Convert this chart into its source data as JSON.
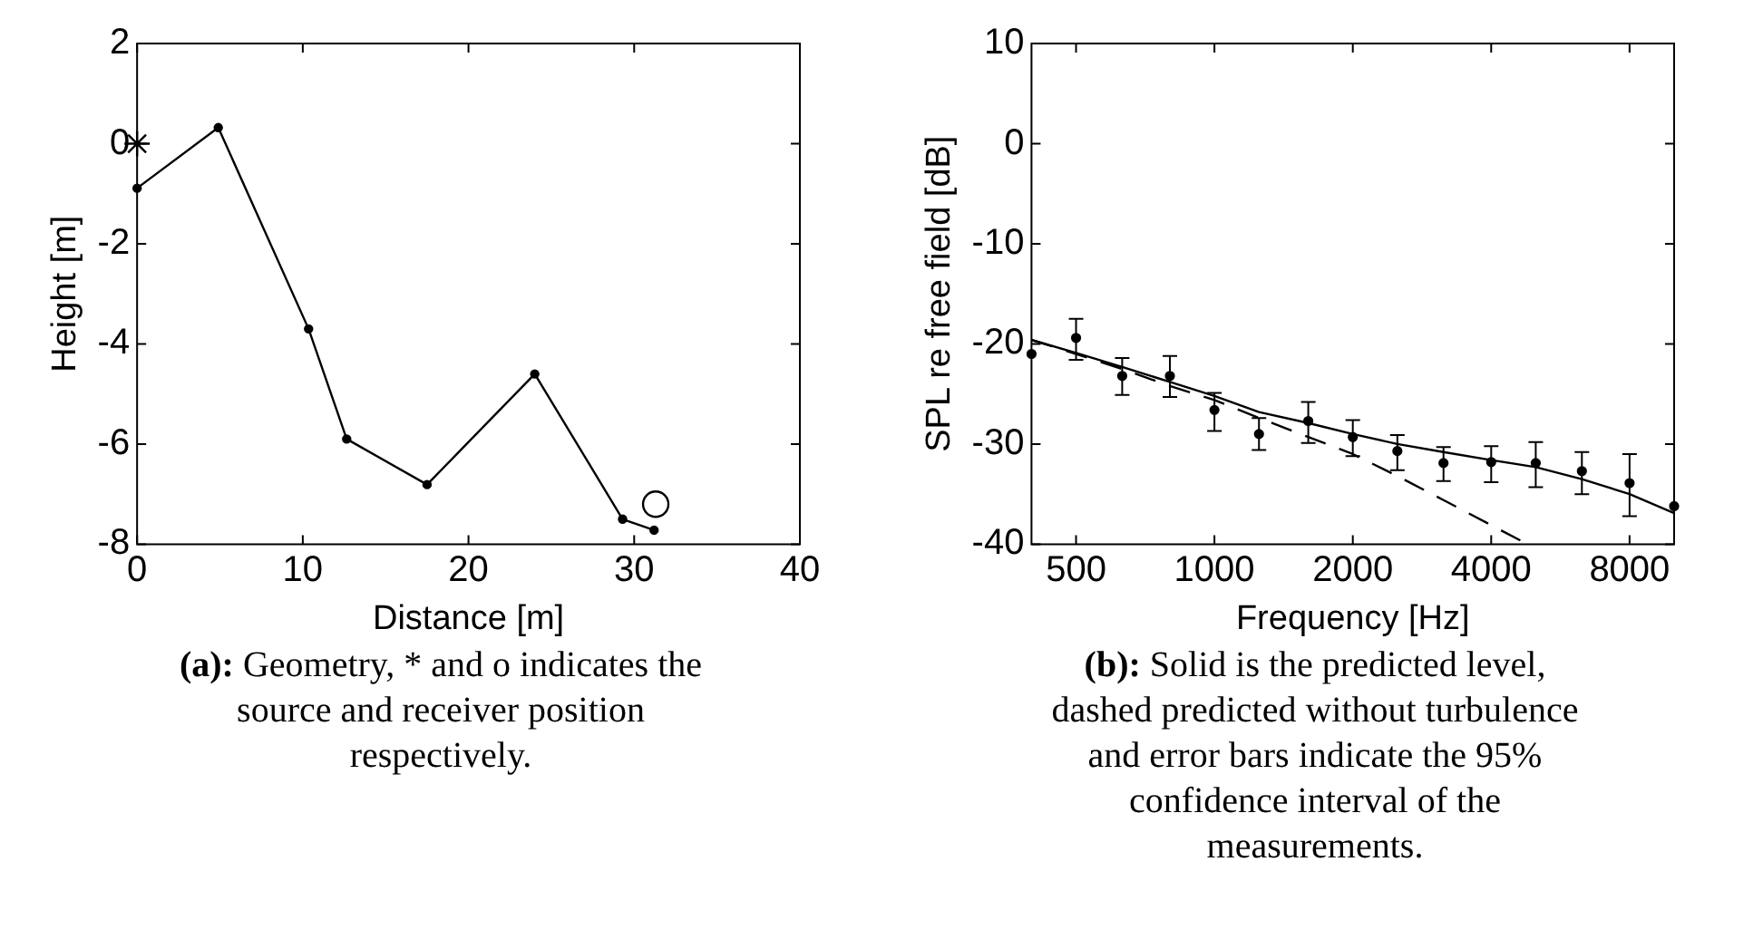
{
  "chart_data": [
    {
      "type": "line",
      "xlabel": "Distance [m]",
      "ylabel": "Height [m]",
      "xlim": [
        0,
        40
      ],
      "xticks": [
        0,
        10,
        20,
        30,
        40
      ],
      "ylim": [
        -8,
        2
      ],
      "yticks": [
        -8,
        -6,
        -4,
        -2,
        0,
        2
      ],
      "grid": false,
      "legend": false,
      "annotations": [
        "(a): Geometry, * and o indicates the source and receiver position respectively."
      ],
      "series": [
        {
          "type": "line",
          "color": "#000000",
          "marker": "circle",
          "x": [
            0,
            4.9,
            10.35,
            12.65,
            17.5,
            24.0,
            29.3,
            31.2
          ],
          "values": [
            -0.89,
            0.32,
            -3.7,
            -5.9,
            -6.81,
            -4.6,
            -7.5,
            -7.72
          ]
        },
        {
          "type": "scatter",
          "color": "#000000",
          "marker": "cross",
          "x": [
            0
          ],
          "values": [
            0
          ]
        },
        {
          "type": "scatter",
          "color": "#000000",
          "marker": "circle",
          "x": [
            31.3
          ],
          "values": [
            -7.2
          ]
        }
      ]
    },
    {
      "type": "line",
      "xlabel": "Frequency [Hz]",
      "ylabel": "SPL re free field [dB]",
      "log": "x",
      "xlim": [
        400,
        10000
      ],
      "xticks": [
        500,
        1000,
        2000,
        4000,
        8000
      ],
      "ylim": [
        -40,
        10
      ],
      "yticks": [
        -40,
        -30,
        -20,
        -10,
        0,
        10
      ],
      "grid": false,
      "legend": false,
      "annotations": [
        "(b): Solid is the predicted level, dashed predicted without turbulence and error bars indicate the 95% confidence interval of the measurements."
      ],
      "series": [
        {
          "type": "scatter",
          "color": "#000000",
          "marker": "circle",
          "x": [
            400,
            500,
            630,
            800,
            1000,
            1250,
            1600,
            2000,
            2500,
            3150,
            4000,
            5000,
            6300,
            8000,
            10000
          ],
          "values": [
            -21.0,
            -19.4,
            -23.2,
            -23.2,
            -26.6,
            -29.0,
            -27.7,
            -29.3,
            -30.7,
            -31.9,
            -31.8,
            -31.9,
            -32.7,
            -33.9,
            -36.2
          ],
          "errors": [
            null,
            [
              -21.6,
              -17.5
            ],
            [
              -25.1,
              -21.4
            ],
            [
              -25.3,
              -21.2
            ],
            [
              -28.7,
              -24.9
            ],
            [
              -30.6,
              -27.4
            ],
            [
              -29.9,
              -25.8
            ],
            [
              -31.2,
              -27.6
            ],
            [
              -32.6,
              -29.1
            ],
            [
              -33.7,
              -30.3
            ],
            [
              -33.8,
              -30.2
            ],
            [
              -34.3,
              -29.8
            ],
            [
              -35.0,
              -30.8
            ],
            [
              -37.2,
              -31.0
            ],
            null
          ]
        },
        {
          "type": "line",
          "color": "#000000",
          "marker": "none",
          "line_style": "solid",
          "x": [
            400,
            500,
            630,
            800,
            1000,
            1250,
            1600,
            2000,
            2500,
            3150,
            4000,
            5000,
            6300,
            8000,
            10000
          ],
          "values": [
            -19.6,
            -20.9,
            -22.3,
            -23.8,
            -25.2,
            -26.8,
            -27.9,
            -29.0,
            -30.0,
            -30.8,
            -31.6,
            -32.3,
            -33.5,
            -35.0,
            -36.9
          ]
        },
        {
          "type": "line",
          "color": "#000000",
          "marker": "none",
          "line_style": "dashed",
          "x": [
            400,
            500,
            630,
            800,
            1000,
            1250,
            1600,
            2000,
            2500,
            3150,
            4000,
            4800
          ],
          "values": [
            -19.6,
            -21.0,
            -22.5,
            -24.2,
            -25.6,
            -27.4,
            -29.3,
            -31.0,
            -33.2,
            -35.6,
            -38.1,
            -40
          ]
        }
      ]
    }
  ]
}
